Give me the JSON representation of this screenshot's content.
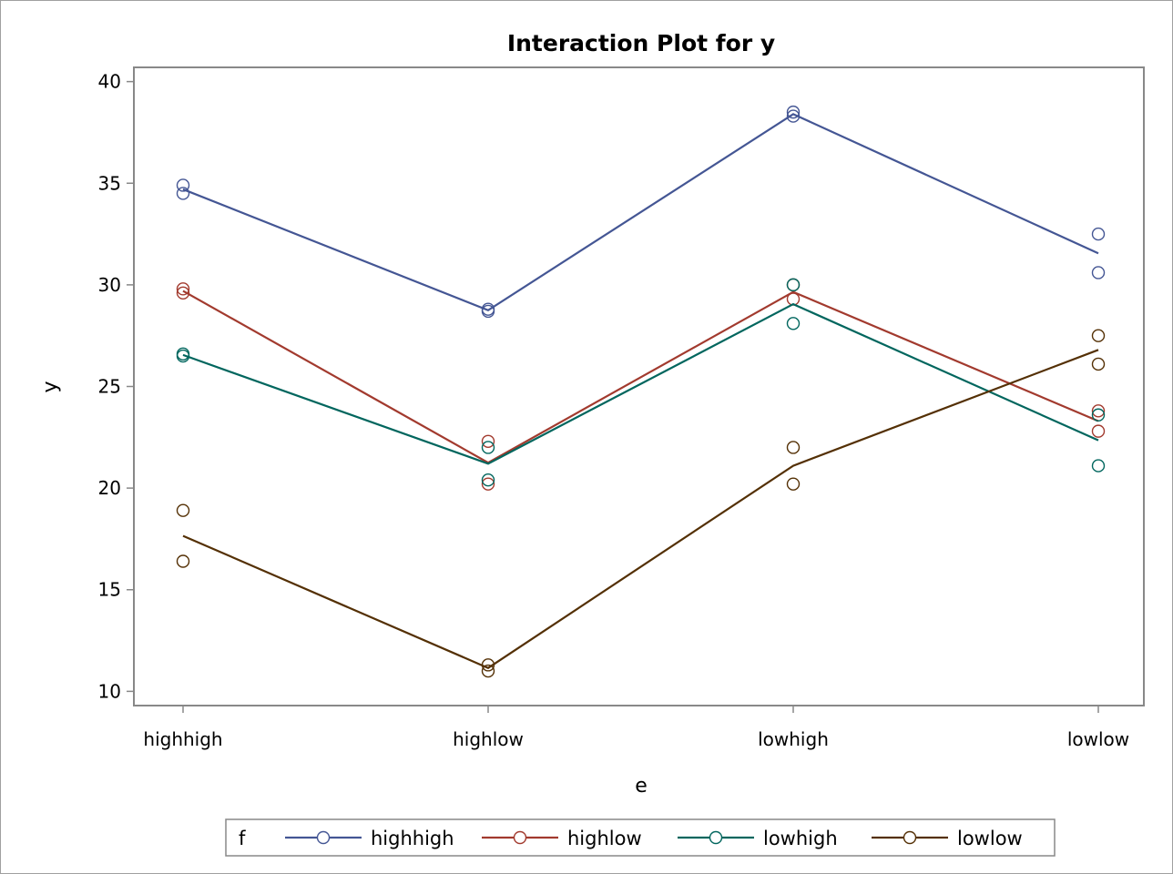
{
  "chart_data": {
    "type": "line",
    "title": "Interaction Plot for y",
    "xlabel": "e",
    "ylabel": "y",
    "categories": [
      "highhigh",
      "highlow",
      "lowhigh",
      "lowlow"
    ],
    "ylim": [
      9.3,
      40.7
    ],
    "yticks": [
      10,
      15,
      20,
      25,
      30,
      35,
      40
    ],
    "grid": false,
    "legend": {
      "title": "f",
      "position": "bottom",
      "entries": [
        "highhigh",
        "highlow",
        "lowhigh",
        "lowlow"
      ]
    },
    "series": [
      {
        "name": "highhigh",
        "color": "#445694",
        "means": [
          34.7,
          28.75,
          38.4,
          31.55
        ],
        "points": [
          [
            34.9,
            34.5
          ],
          [
            28.8,
            28.7
          ],
          [
            38.5,
            38.3
          ],
          [
            32.5,
            30.6
          ]
        ]
      },
      {
        "name": "highlow",
        "color": "#A23A2E",
        "means": [
          29.7,
          21.25,
          29.65,
          23.3
        ],
        "points": [
          [
            29.8,
            29.6
          ],
          [
            22.3,
            20.2
          ],
          [
            30.0,
            29.3
          ],
          [
            23.8,
            22.8
          ]
        ]
      },
      {
        "name": "lowhigh",
        "color": "#01665E",
        "means": [
          26.55,
          21.2,
          29.05,
          22.35
        ],
        "points": [
          [
            26.6,
            26.5
          ],
          [
            22.0,
            20.4
          ],
          [
            30.0,
            28.1
          ],
          [
            23.6,
            21.1
          ]
        ]
      },
      {
        "name": "lowlow",
        "color": "#543005",
        "means": [
          17.65,
          11.15,
          21.1,
          26.8
        ],
        "points": [
          [
            18.9,
            16.4
          ],
          [
            11.3,
            11.0
          ],
          [
            22.0,
            20.2
          ],
          [
            27.5,
            26.1
          ]
        ]
      }
    ]
  }
}
